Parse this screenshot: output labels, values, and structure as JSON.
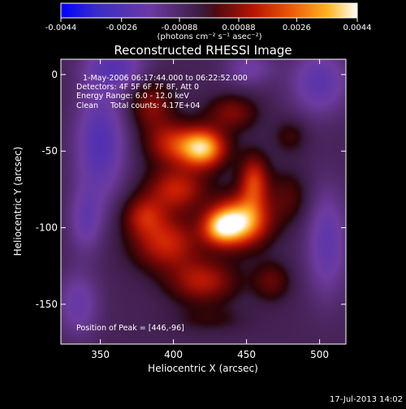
{
  "chart_data": {
    "type": "heatmap",
    "title": "Reconstructed RHESSI Image",
    "xlabel": "Heliocentric X (arcsec)",
    "ylabel": "Heliocentric Y (arcsec)",
    "xlim": [
      323,
      518
    ],
    "ylim": [
      -176,
      10
    ],
    "x_ticks": [
      350,
      400,
      450,
      500
    ],
    "y_ticks": [
      0,
      -50,
      -100,
      -150
    ],
    "colorbar": {
      "min": -0.0044,
      "max": 0.0044,
      "tick_values": [
        -0.0044,
        -0.0026,
        -0.00088,
        0.00088,
        0.0026,
        0.0044
      ],
      "tick_labels": [
        "-0.0044",
        "-0.0026",
        "-0.00088",
        "0.00088",
        "0.0026",
        "0.0044"
      ],
      "units_label": "(photons cm⁻² s⁻¹ asec⁻²)"
    },
    "annotations": [
      "1-May-2006 06:17:44.000 to 06:22:52.000",
      "Detectors: 4F 5F 6F 7F 8F, Att 0",
      "Energy Range: 6.0 - 12.0 keV",
      "Clean     Total counts: 4.17E+04",
      "Position of Peak = [446,-96]"
    ],
    "peak": [
      446,
      -96
    ],
    "sources": [
      {
        "x": 420,
        "y": -48,
        "sx": 11,
        "sy": 9,
        "amp": 0.0043
      },
      {
        "x": 446,
        "y": -96,
        "sx": 13,
        "sy": 11,
        "amp": 0.0044
      },
      {
        "x": 432,
        "y": -100,
        "sx": 9,
        "sy": 8,
        "amp": 0.0028
      },
      {
        "x": 455,
        "y": -70,
        "sx": 7,
        "sy": 12,
        "amp": 0.0026
      },
      {
        "x": 398,
        "y": -45,
        "sx": 12,
        "sy": 10,
        "amp": 0.0021
      },
      {
        "x": 402,
        "y": -75,
        "sx": 14,
        "sy": 10,
        "amp": 0.0023
      },
      {
        "x": 395,
        "y": -110,
        "sx": 16,
        "sy": 12,
        "amp": 0.0024
      },
      {
        "x": 380,
        "y": -92,
        "sx": 10,
        "sy": 9,
        "amp": 0.0019
      },
      {
        "x": 420,
        "y": -135,
        "sx": 16,
        "sy": 10,
        "amp": 0.0021
      },
      {
        "x": 385,
        "y": -20,
        "sx": 10,
        "sy": 11,
        "amp": 0.0016
      },
      {
        "x": 440,
        "y": -25,
        "sx": 12,
        "sy": 8,
        "amp": 0.0015
      },
      {
        "x": 467,
        "y": -135,
        "sx": 9,
        "sy": 9,
        "amp": 0.0012
      },
      {
        "x": 478,
        "y": -80,
        "sx": 10,
        "sy": 12,
        "amp": 0.001
      },
      {
        "x": 425,
        "y": -160,
        "sx": 18,
        "sy": 6,
        "amp": 0.0006
      },
      {
        "x": 480,
        "y": -40,
        "sx": 8,
        "sy": 8,
        "amp": 0.0008
      },
      {
        "x": 350,
        "y": -45,
        "sx": 12,
        "sy": 25,
        "amp": -0.0018
      },
      {
        "x": 360,
        "y": 5,
        "sx": 15,
        "sy": 10,
        "amp": -0.0015
      },
      {
        "x": 500,
        "y": -5,
        "sx": 14,
        "sy": 15,
        "amp": -0.0015
      },
      {
        "x": 505,
        "y": -110,
        "sx": 10,
        "sy": 25,
        "amp": -0.0014
      },
      {
        "x": 335,
        "y": -150,
        "sx": 10,
        "sy": 15,
        "amp": -0.0012
      },
      {
        "x": 340,
        "y": -95,
        "sx": 8,
        "sy": 15,
        "amp": -0.0012
      },
      {
        "x": 452,
        "y": 4,
        "sx": 12,
        "sy": 8,
        "amp": -0.001
      }
    ]
  },
  "footer": {
    "timestamp": "17-Jul-2013 14:02"
  }
}
